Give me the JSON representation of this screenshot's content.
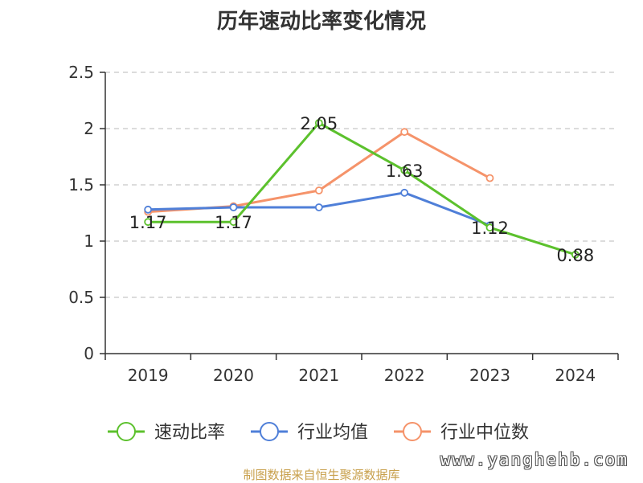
{
  "title": "历年速动比率变化情况",
  "source": "制图数据来自恒生聚源数据库",
  "watermark": "www.yanghehb.com",
  "chart_data": {
    "type": "line",
    "title": "历年速动比率变化情况",
    "categories": [
      "2019",
      "2020",
      "2021",
      "2022",
      "2023",
      "2024"
    ],
    "ylim": [
      0,
      2.5
    ],
    "yticks": [
      "0",
      "0.5",
      "1",
      "1.5",
      "2",
      "2.5"
    ],
    "grid": true,
    "legend_position": "bottom",
    "series": [
      {
        "name": "速动比率",
        "color": "#5cc12d",
        "values": [
          1.17,
          1.17,
          2.05,
          1.63,
          1.12,
          0.88
        ],
        "labels": [
          "1.17",
          "1.17",
          "2.05",
          "1.63",
          "1.12",
          "0.88"
        ]
      },
      {
        "name": "行业均值",
        "color": "#4f7fd8",
        "values": [
          1.28,
          1.3,
          1.3,
          1.43,
          1.14,
          null
        ]
      },
      {
        "name": "行业中位数",
        "color": "#f5936a",
        "values": [
          1.26,
          1.31,
          1.45,
          1.97,
          1.56,
          null
        ]
      }
    ]
  }
}
